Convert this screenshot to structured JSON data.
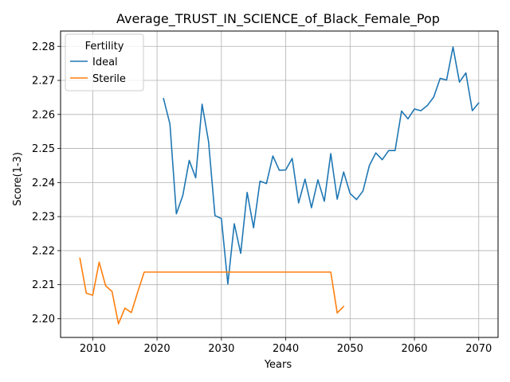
{
  "chart_data": {
    "type": "line",
    "title": "Average_TRUST_IN_SCIENCE_of_Black_Female_Pop",
    "xlabel": "Years",
    "ylabel": "Score(1-3)",
    "xlim": [
      2005,
      2073
    ],
    "ylim": [
      2.1945,
      2.2845
    ],
    "xticks": [
      2010,
      2020,
      2030,
      2040,
      2050,
      2060,
      2070
    ],
    "yticks": [
      2.2,
      2.21,
      2.22,
      2.23,
      2.24,
      2.25,
      2.26,
      2.27,
      2.28
    ],
    "ytick_labels": [
      "2.20",
      "2.21",
      "2.22",
      "2.23",
      "2.24",
      "2.25",
      "2.26",
      "2.27",
      "2.28"
    ],
    "grid": true,
    "legend": {
      "title": "Fertility",
      "placement": "top-left"
    },
    "series": [
      {
        "name": "Ideal",
        "color": "#1f77b4",
        "x": [
          2021,
          2022,
          2023,
          2024,
          2025,
          2026,
          2027,
          2028,
          2029,
          2030,
          2031,
          2032,
          2033,
          2034,
          2035,
          2036,
          2037,
          2038,
          2039,
          2040,
          2041,
          2042,
          2043,
          2044,
          2045,
          2046,
          2047,
          2048,
          2049,
          2050,
          2051,
          2052,
          2053,
          2054,
          2055,
          2056,
          2057,
          2058,
          2059,
          2060,
          2061,
          2062,
          2063,
          2064,
          2065,
          2066,
          2067,
          2068,
          2069,
          2070
        ],
        "y": [
          2.2647,
          2.2572,
          2.2308,
          2.2362,
          2.2465,
          2.2414,
          2.263,
          2.2521,
          2.2303,
          2.2294,
          2.2102,
          2.2279,
          2.2192,
          2.2371,
          2.2267,
          2.2404,
          2.2397,
          2.2478,
          2.2436,
          2.2437,
          2.2471,
          2.234,
          2.241,
          2.2326,
          2.2408,
          2.2345,
          2.2485,
          2.2351,
          2.2431,
          2.2368,
          2.235,
          2.2375,
          2.245,
          2.2487,
          2.2467,
          2.2494,
          2.2494,
          2.261,
          2.2587,
          2.2616,
          2.2611,
          2.2626,
          2.2651,
          2.2706,
          2.2701,
          2.2798,
          2.2695,
          2.2722,
          2.2611,
          2.2634
        ]
      },
      {
        "name": "Sterile",
        "color": "#ff7f0e",
        "x": [
          2008,
          2009,
          2010,
          2011,
          2012,
          2013,
          2014,
          2015,
          2016,
          2017,
          2018,
          2019,
          2020,
          2021,
          2022,
          2023,
          2024,
          2025,
          2026,
          2027,
          2028,
          2029,
          2030,
          2031,
          2032,
          2033,
          2034,
          2035,
          2036,
          2037,
          2038,
          2039,
          2040,
          2041,
          2042,
          2043,
          2044,
          2045,
          2046,
          2047,
          2048,
          2049
        ],
        "y": [
          2.2178,
          2.2075,
          2.2069,
          2.2166,
          2.2097,
          2.208,
          2.1985,
          2.2031,
          2.2018,
          2.2079,
          2.2137,
          2.2137,
          2.2137,
          2.2137,
          2.2137,
          2.2137,
          2.2137,
          2.2137,
          2.2137,
          2.2137,
          2.2137,
          2.2137,
          2.2137,
          2.2137,
          2.2137,
          2.2137,
          2.2137,
          2.2137,
          2.2137,
          2.2137,
          2.2137,
          2.2137,
          2.2137,
          2.2137,
          2.2137,
          2.2137,
          2.2137,
          2.2137,
          2.2137,
          2.2137,
          2.2017,
          2.2036
        ]
      }
    ]
  }
}
